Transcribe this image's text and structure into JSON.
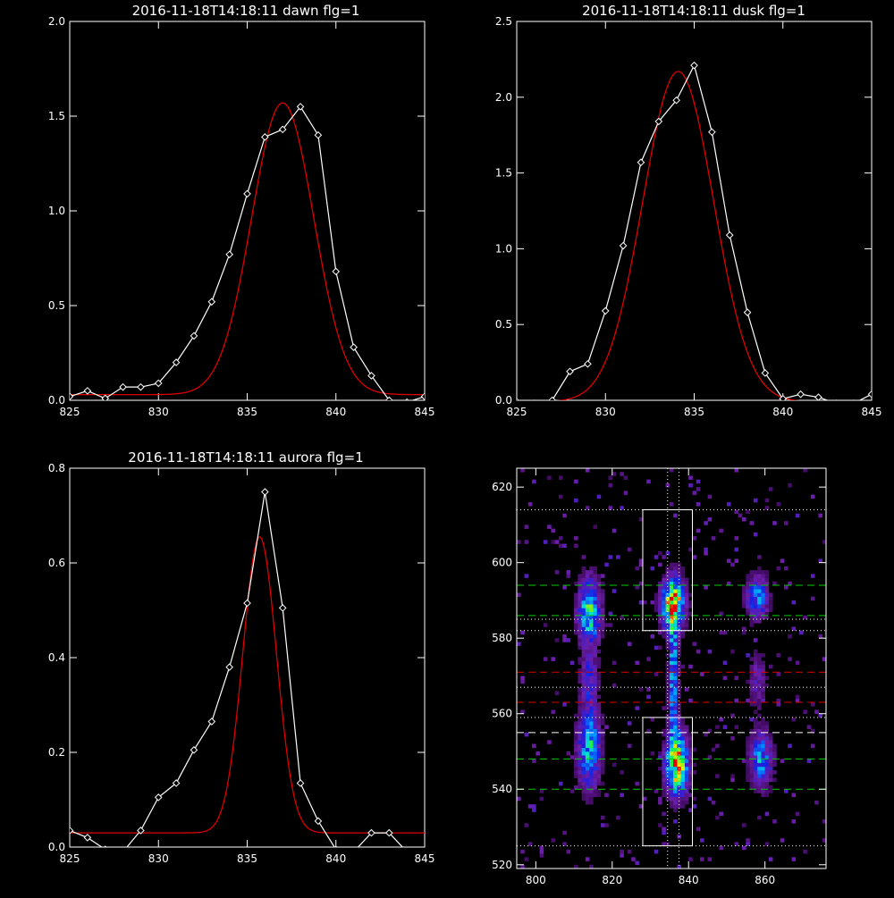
{
  "colors": {
    "background": "#000000",
    "axes": "#ffffff",
    "data_line": "#ffffff",
    "fit_line": "#dd0000",
    "green_dash": "#00cc00",
    "red_dash": "#dd0000",
    "white_dash": "#ffffff"
  },
  "chart_data": [
    {
      "type": "line",
      "title": "2016-11-18T14:18:11 dawn flg=1",
      "xlim": [
        825,
        845
      ],
      "ylim": [
        0,
        2.0
      ],
      "xticks": [
        "825",
        "830",
        "835",
        "840",
        "845"
      ],
      "yticks": [
        "0.0",
        "0.5",
        "1.0",
        "1.5",
        "2.0"
      ],
      "series": [
        {
          "style": "line-with-diamond-markers",
          "x": [
            825,
            826,
            827,
            828,
            829,
            830,
            831,
            832,
            833,
            834,
            835,
            836,
            837,
            838,
            839,
            840,
            841,
            842,
            843,
            844,
            845
          ],
          "y": [
            0.02,
            0.05,
            0.01,
            0.07,
            0.07,
            0.09,
            0.2,
            0.34,
            0.52,
            0.77,
            1.09,
            1.39,
            1.43,
            1.55,
            1.4,
            0.68,
            0.28,
            0.13,
            0.0,
            -0.01,
            0.02
          ]
        },
        {
          "style": "smooth-fit",
          "fit": {
            "amplitude": 1.54,
            "center": 837.0,
            "sigma": 1.75,
            "baseline": 0.03
          }
        }
      ]
    },
    {
      "type": "line",
      "title": "2016-11-18T14:18:11 dusk flg=1",
      "xlim": [
        825,
        845
      ],
      "ylim": [
        0,
        2.5
      ],
      "xticks": [
        "825",
        "830",
        "835",
        "840",
        "845"
      ],
      "yticks": [
        "0.0",
        "0.5",
        "1.0",
        "1.5",
        "2.0",
        "2.5"
      ],
      "series": [
        {
          "style": "line-with-diamond-markers",
          "x": [
            825,
            826,
            827,
            828,
            829,
            830,
            831,
            832,
            833,
            834,
            835,
            836,
            837,
            838,
            839,
            840,
            841,
            842,
            843,
            844,
            845
          ],
          "y": [
            -0.01,
            -0.02,
            0.0,
            0.19,
            0.24,
            0.59,
            1.02,
            1.57,
            1.84,
            1.98,
            2.21,
            1.77,
            1.09,
            0.58,
            0.18,
            0.01,
            0.04,
            0.02,
            -0.02,
            -0.02,
            0.04
          ]
        },
        {
          "style": "smooth-fit",
          "fit": {
            "amplitude": 2.18,
            "center": 834.1,
            "sigma": 2.0,
            "baseline": -0.01
          }
        }
      ]
    },
    {
      "type": "line",
      "title": "2016-11-18T14:18:11 aurora flg=1",
      "xlim": [
        825,
        845
      ],
      "ylim": [
        0,
        0.8
      ],
      "xticks": [
        "825",
        "830",
        "835",
        "840",
        "845"
      ],
      "yticks": [
        "0.0",
        "0.2",
        "0.4",
        "0.6",
        "0.8"
      ],
      "series": [
        {
          "style": "line-with-diamond-markers",
          "x": [
            825,
            826,
            827,
            828,
            829,
            830,
            831,
            832,
            833,
            834,
            835,
            836,
            837,
            838,
            839,
            840,
            841,
            842,
            843,
            844,
            845
          ],
          "y": [
            0.035,
            0.02,
            -0.005,
            -0.01,
            0.035,
            0.105,
            0.135,
            0.205,
            0.265,
            0.38,
            0.515,
            0.75,
            0.505,
            0.135,
            0.055,
            -0.005,
            -0.01,
            0.03,
            0.03,
            -0.01,
            -0.01
          ]
        },
        {
          "style": "smooth-fit",
          "fit": {
            "amplitude": 0.625,
            "center": 835.7,
            "sigma": 0.95,
            "baseline": 0.03
          }
        }
      ]
    },
    {
      "type": "heatmap",
      "title": "",
      "xlim": [
        795,
        876
      ],
      "ylim": [
        519,
        625
      ],
      "xticks": [
        "800",
        "820",
        "840",
        "860"
      ],
      "yticks": [
        "520",
        "540",
        "560",
        "580",
        "600",
        "620"
      ],
      "colormap": "rainbow",
      "blobs": [
        {
          "x": 836,
          "y": 589,
          "sx": 2.0,
          "sy": 4.5,
          "amp": 1.0
        },
        {
          "x": 837,
          "y": 547,
          "sx": 2.0,
          "sy": 5.5,
          "amp": 0.95
        },
        {
          "x": 836,
          "y": 570,
          "sx": 0.8,
          "sy": 12.0,
          "amp": 0.55
        },
        {
          "x": 814,
          "y": 587,
          "sx": 2.0,
          "sy": 6.0,
          "amp": 0.65
        },
        {
          "x": 814,
          "y": 551,
          "sx": 2.0,
          "sy": 7.0,
          "amp": 0.6
        },
        {
          "x": 858,
          "y": 591,
          "sx": 2.0,
          "sy": 4.0,
          "amp": 0.45
        },
        {
          "x": 859,
          "y": 548,
          "sx": 2.0,
          "sy": 5.0,
          "amp": 0.5
        },
        {
          "x": 814,
          "y": 569,
          "sx": 1.5,
          "sy": 5.0,
          "amp": 0.3
        },
        {
          "x": 858,
          "y": 569,
          "sx": 1.5,
          "sy": 5.0,
          "amp": 0.22
        }
      ],
      "boxes": [
        {
          "x0": 828,
          "x1": 841,
          "y0": 582,
          "y1": 614
        },
        {
          "x0": 828,
          "x1": 841,
          "y0": 525,
          "y1": 559
        }
      ],
      "vlines_dotted": [
        834.5,
        837.5
      ],
      "hlines": [
        {
          "y": 614,
          "style": "dotted",
          "color": "white"
        },
        {
          "y": 594,
          "style": "dashed",
          "color": "green"
        },
        {
          "y": 586,
          "style": "dashed",
          "color": "green"
        },
        {
          "y": 585,
          "style": "dotted",
          "color": "white"
        },
        {
          "y": 582,
          "style": "dotted",
          "color": "white"
        },
        {
          "y": 571,
          "style": "dashed",
          "color": "red"
        },
        {
          "y": 567,
          "style": "dotted",
          "color": "white"
        },
        {
          "y": 563,
          "style": "dashed",
          "color": "red"
        },
        {
          "y": 559,
          "style": "dotted",
          "color": "white"
        },
        {
          "y": 555,
          "style": "dashed",
          "color": "white"
        },
        {
          "y": 548,
          "style": "dashed",
          "color": "green"
        },
        {
          "y": 540,
          "style": "dashed",
          "color": "green"
        },
        {
          "y": 525,
          "style": "dotted",
          "color": "white"
        }
      ]
    }
  ]
}
